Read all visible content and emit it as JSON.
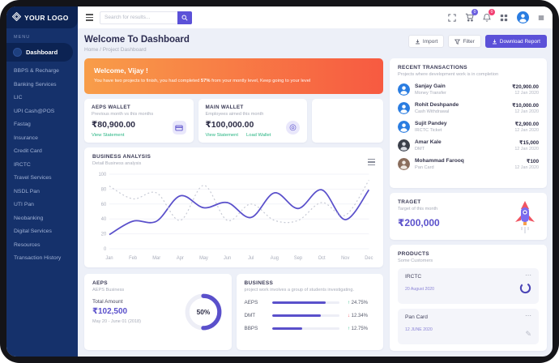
{
  "colors": {
    "sidebar": "#15316b",
    "sidebar_dark": "#0c2353",
    "accent": "#5a50cb",
    "button": "#5b51d8",
    "green_link": "#27b583",
    "banner_from": "#f89d49",
    "banner_to": "#f75a41",
    "badge_cart": "#6b5fe0",
    "badge_bell": "#f23f72",
    "up": "#27b583",
    "down": "#f05562"
  },
  "sidebar": {
    "logo_text": "YOUR LOGO",
    "menu_label": "MENU",
    "active_item": "Dashboard",
    "items": [
      "BBPS & Recharge",
      "Banking Services",
      "LIC",
      "UPI Cash@POS",
      "Fastag",
      "Insurance",
      "Credit Card",
      "IRCTC",
      "Travel Services",
      "NSDL Pan",
      "UTI Pan",
      "Neobanking",
      "Digital Services",
      "Resources",
      "Transaction History"
    ]
  },
  "topbar": {
    "search_placeholder": "Search for results...",
    "cart_badge": "0",
    "bell_badge": "0"
  },
  "header": {
    "title": "Welcome To Dashboard",
    "breadcrumb": "Home / Project Dashboard",
    "import_label": "Import",
    "filter_label": "Filter",
    "download_label": "Download Report"
  },
  "banner": {
    "greeting": "Welcome, Vijay !",
    "msg_before": "You have two projects to finish, you had completed ",
    "highlight": "57%",
    "msg_after": " from your montly level, Keep going to your level"
  },
  "wallets": [
    {
      "title": "AEPS WALLET",
      "subtitle": "Previous month vs this months",
      "amount": "₹80,900.00",
      "link1": "View Statement"
    },
    {
      "title": "MAIN WALLET",
      "subtitle": "Employees aimed this month",
      "amount": "₹100,000.00",
      "link1": "View Statement",
      "link2": "Load Wallet"
    }
  ],
  "chart_card": {
    "title": "BUSINESS ANALYSIS",
    "subtitle": "Detail Business analysis"
  },
  "chart_data": {
    "type": "line",
    "x": [
      "Jan",
      "Feb",
      "Mar",
      "Apr",
      "May",
      "Jun",
      "Jul",
      "Aug",
      "Sep",
      "Oct",
      "Nov",
      "Dec"
    ],
    "series": [
      {
        "name": "current",
        "style": "solid",
        "color": "#5a50cb",
        "values": [
          19,
          37,
          37,
          71,
          55,
          62,
          42,
          75,
          54,
          79,
          39,
          79
        ]
      },
      {
        "name": "previous",
        "style": "dotted",
        "color": "#c6c9d4",
        "values": [
          84,
          67,
          75,
          38,
          85,
          38,
          60,
          38,
          38,
          62,
          45,
          92
        ]
      }
    ],
    "ylim": [
      0,
      100
    ],
    "yticks": [
      0,
      20,
      40,
      60,
      80,
      100
    ],
    "grid": true,
    "legend": "none"
  },
  "aeps_card": {
    "title": "AEPS",
    "subtitle": "AEPS Business",
    "total_label": "Total Amount",
    "amount": "₹102,500",
    "period": "May 20 - June 01 (2018)",
    "percent": 50,
    "percent_label": "50%"
  },
  "business_card": {
    "title": "BUSINESS",
    "subtitle": "project work involves a group of students investigating.",
    "rows": [
      {
        "label": "AEPS",
        "progress": 80,
        "direction": "up",
        "change": "24.75%"
      },
      {
        "label": "DMT",
        "progress": 72,
        "direction": "down",
        "change": "12.34%"
      },
      {
        "label": "BBPS",
        "progress": 45,
        "direction": "up",
        "change": "12.75%"
      }
    ]
  },
  "transactions": {
    "title": "RECENT TRANSACTIONS",
    "subtitle": "Projects where development work is in completion",
    "items": [
      {
        "name": "Sanjay Gain",
        "category": "Money Transfer",
        "amount": "₹20,900.00",
        "date": "12 Jan 2020",
        "avatar_color": "#2a7de1"
      },
      {
        "name": "Rohit Deshpande",
        "category": "Cash Withdrawal",
        "amount": "₹10,000.00",
        "date": "12 Jan 2020",
        "avatar_color": "#2a7de1"
      },
      {
        "name": "Sujit Pandey",
        "category": "IRCTC Ticket",
        "amount": "₹2,900.00",
        "date": "12 Jan 2020",
        "avatar_color": "#2a7de1"
      },
      {
        "name": "Amar Kale",
        "category": "DMT",
        "amount": "₹15,000",
        "date": "12 Jan 2020",
        "avatar_color": "#3a3f4a"
      },
      {
        "name": "Mohammad Farooq",
        "category": "Pan Card",
        "amount": "₹100",
        "date": "12 Jan 2020",
        "avatar_color": "#8a6d5c"
      }
    ]
  },
  "target_card": {
    "title": "TRAGET",
    "subtitle": "Target of this month",
    "amount": "₹200,000"
  },
  "products_card": {
    "title": "PRODUCTS",
    "subtitle": "Some Customers",
    "items": [
      {
        "name": "IRCTC",
        "date": "20 August 2020",
        "icon": "donut"
      },
      {
        "name": "Pan Card",
        "date": "12 JUNE 2020",
        "icon": "pen"
      }
    ]
  }
}
